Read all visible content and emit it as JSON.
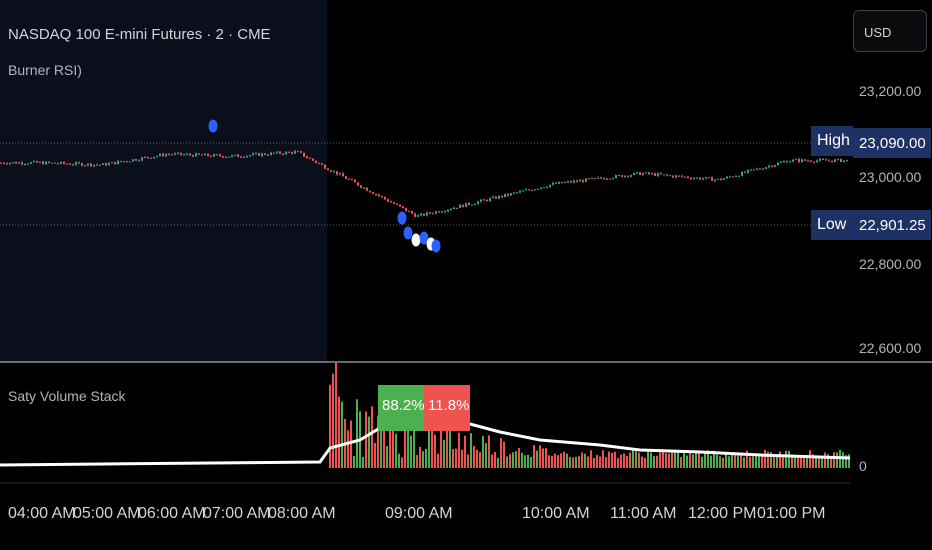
{
  "header": {
    "symbol_title": "NASDAQ 100 E-mini Futures · 2 · CME",
    "indicator_label": "Burner RSI)"
  },
  "currency_button": {
    "label": "USD"
  },
  "price_axis": {
    "ticks": [
      "23,200.00",
      "23,000.00",
      "22,800.00",
      "22,600.00"
    ]
  },
  "high_tag": {
    "label": "High",
    "value": "23,090.00"
  },
  "low_tag": {
    "label": "Low",
    "value": "22,901.25"
  },
  "volume_pane": {
    "title": "Saty Volume Stack",
    "zero_label": "0",
    "buy_pct": "88.2%",
    "sell_pct": "11.8%"
  },
  "time_axis": {
    "ticks": [
      "04:00 AM",
      "05:00 AM",
      "06:00 AM",
      "07:00 AM",
      "08:00 AM",
      "09:00 AM",
      "10:00 AM",
      "11:00 AM",
      "12:00 PM",
      "01:00 PM"
    ]
  },
  "colors": {
    "up": "#26a69a",
    "up_volume": "#4caf50",
    "down": "#ef5350",
    "premarket_shade": "#0b0f1c",
    "tag_bg": "#1d3164",
    "marker_blue": "#2962ff",
    "marker_white": "#ffffff"
  },
  "chart_data": {
    "type": "candlestick",
    "title": "NASDAQ 100 E-mini Futures · 2 · CME",
    "high": 23090.0,
    "low": 22901.25,
    "y_ticks": [
      23200,
      23000,
      22800,
      22600
    ],
    "x_ticks": [
      "04:00 AM",
      "05:00 AM",
      "06:00 AM",
      "07:00 AM",
      "08:00 AM",
      "09:00 AM",
      "10:00 AM",
      "11:00 AM",
      "12:00 PM",
      "01:00 PM"
    ],
    "price_path_approx": [
      [
        "04:00 AM",
        23035
      ],
      [
        "05:00 AM",
        23030
      ],
      [
        "06:00 AM",
        23055
      ],
      [
        "07:00 AM",
        23050
      ],
      [
        "08:00 AM",
        23060
      ],
      [
        "09:00 AM",
        22910
      ],
      [
        "10:00 AM",
        22985
      ],
      [
        "11:00 AM",
        23010
      ],
      [
        "12:00 PM",
        22995
      ],
      [
        "01:00 PM",
        23040
      ]
    ],
    "volume_split": {
      "buy_percent": 88.2,
      "sell_percent": 11.8
    }
  }
}
